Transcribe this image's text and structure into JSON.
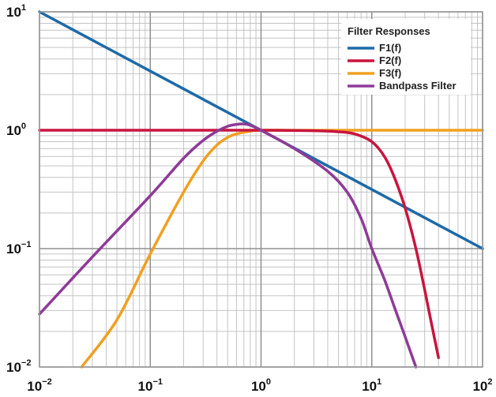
{
  "chart_data": {
    "type": "line",
    "xscale": "log",
    "yscale": "log",
    "xlim": [
      0.01,
      100
    ],
    "ylim": [
      0.01,
      10
    ],
    "grid": true,
    "x_ticks": [
      {
        "value": 0.01,
        "base": "10",
        "exp": "−2"
      },
      {
        "value": 0.1,
        "base": "10",
        "exp": "−1"
      },
      {
        "value": 1,
        "base": "10",
        "exp": "0"
      },
      {
        "value": 10,
        "base": "10",
        "exp": "1"
      },
      {
        "value": 100,
        "base": "10",
        "exp": "2"
      }
    ],
    "y_ticks": [
      {
        "value": 0.01,
        "base": "10",
        "exp": "−2"
      },
      {
        "value": 0.1,
        "base": "10",
        "exp": "−1"
      },
      {
        "value": 1,
        "base": "10",
        "exp": "0"
      },
      {
        "value": 10,
        "base": "10",
        "exp": "1"
      }
    ],
    "legend": {
      "title": "Filter Responses",
      "position": "top-right",
      "entries": [
        "F1(f)",
        "F2(f)",
        "F3(f)",
        "Bandpass Filter"
      ]
    },
    "series": [
      {
        "name": "F1(f)",
        "color": "#1f6aa8",
        "x": [
          0.01,
          0.1,
          1,
          10,
          100
        ],
        "y": [
          10,
          3.16,
          1,
          0.316,
          0.1
        ]
      },
      {
        "name": "F2(f)",
        "color": "#c8153e",
        "x": [
          0.01,
          0.1,
          1,
          3,
          5,
          7,
          10,
          13,
          16,
          20,
          25,
          30,
          35,
          40
        ],
        "y": [
          1.0,
          1.0,
          1.0,
          0.99,
          0.97,
          0.93,
          0.8,
          0.6,
          0.4,
          0.22,
          0.1,
          0.045,
          0.022,
          0.012
        ]
      },
      {
        "name": "F3(f)",
        "color": "#f0a020",
        "x": [
          0.024,
          0.05,
          0.1,
          0.2,
          0.3,
          0.4,
          0.5,
          0.6,
          0.8,
          1,
          3,
          10,
          100
        ],
        "y": [
          0.01,
          0.025,
          0.09,
          0.3,
          0.55,
          0.75,
          0.87,
          0.93,
          0.98,
          1.0,
          1.0,
          1.0,
          1.0
        ]
      },
      {
        "name": "Bandpass Filter",
        "color": "#8e3b97",
        "x": [
          0.01,
          0.03,
          0.1,
          0.2,
          0.3,
          0.4,
          0.5,
          0.6,
          0.7,
          0.8,
          1,
          2,
          4,
          6,
          8,
          10,
          13,
          16,
          20,
          25
        ],
        "y": [
          0.028,
          0.085,
          0.28,
          0.58,
          0.82,
          0.98,
          1.08,
          1.12,
          1.13,
          1.1,
          1.0,
          0.7,
          0.45,
          0.3,
          0.18,
          0.1,
          0.055,
          0.032,
          0.018,
          0.01
        ]
      }
    ]
  }
}
